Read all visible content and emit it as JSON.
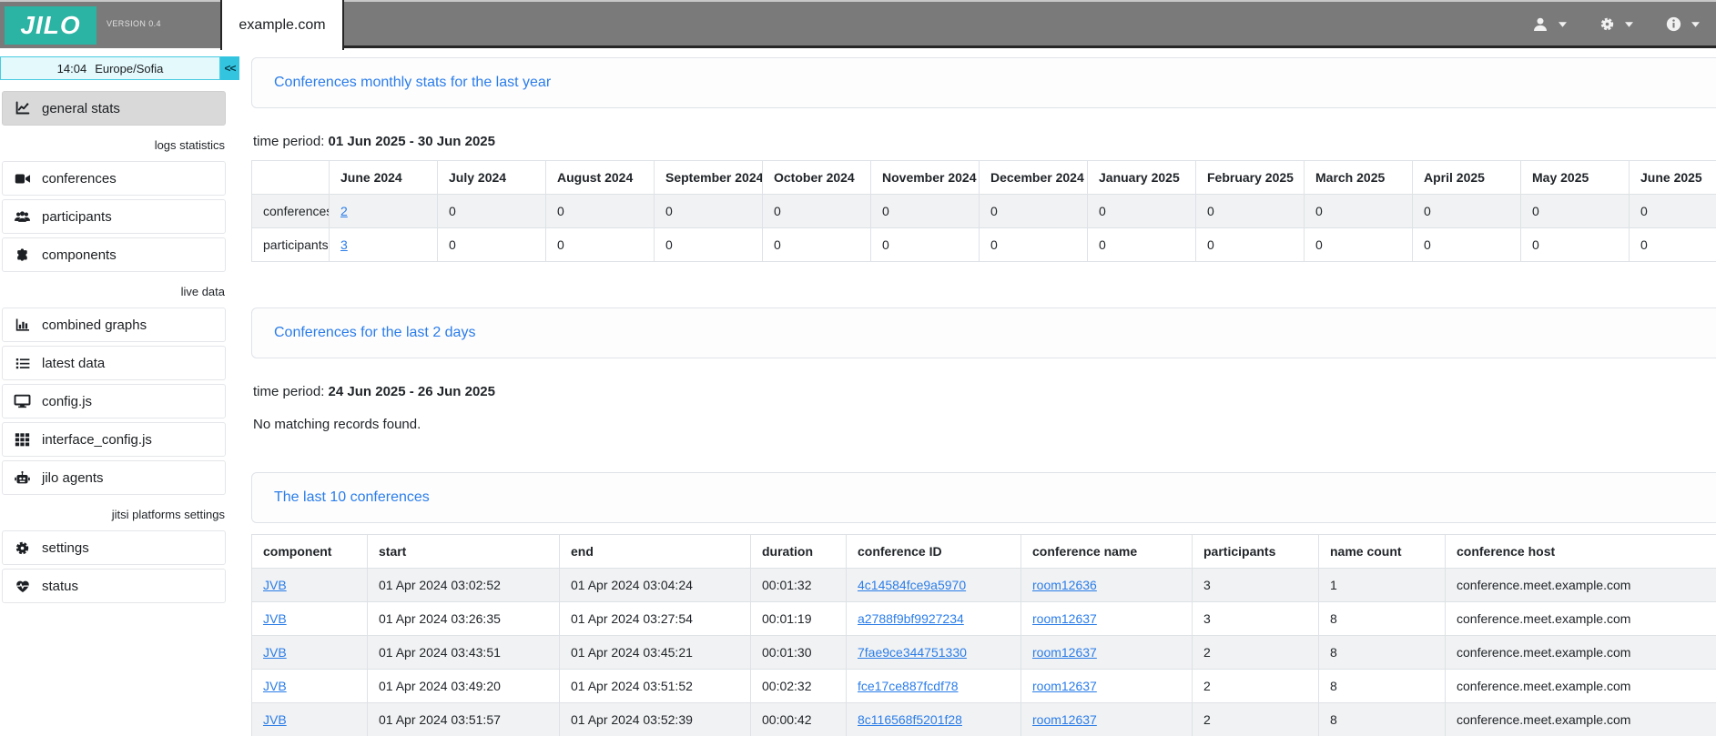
{
  "colors": {
    "brand_teal": "#2bb3a3",
    "accent_blue": "#2b7de9",
    "cyan_accent": "#33c5e0",
    "topbar_gray": "#7a7a7a"
  },
  "topbar": {
    "logo": "JILO",
    "version": "VERSION 0.4",
    "tab": "example.com",
    "menus": [
      {
        "name": "user-menu",
        "icon": "user-icon",
        "caret": "caret-down-icon"
      },
      {
        "name": "settings-menu",
        "icon": "gear-icon",
        "caret": "caret-down-icon"
      },
      {
        "name": "info-menu",
        "icon": "info-icon",
        "caret": "caret-down-icon"
      }
    ]
  },
  "sidebar": {
    "clock": {
      "time": "14:04",
      "timezone": "Europe/Sofia",
      "collapse_label": "<<"
    },
    "sections": [
      {
        "label": "",
        "items": [
          {
            "icon": "chart-line-icon",
            "label": "general stats",
            "active": true
          }
        ]
      },
      {
        "label": "logs statistics",
        "items": [
          {
            "icon": "video-icon",
            "label": "conferences",
            "active": false
          },
          {
            "icon": "users-icon",
            "label": "participants",
            "active": false
          },
          {
            "icon": "puzzle-icon",
            "label": "components",
            "active": false
          }
        ]
      },
      {
        "label": "live data",
        "items": [
          {
            "icon": "bar-chart-icon",
            "label": "combined graphs",
            "active": false
          },
          {
            "icon": "list-icon",
            "label": "latest data",
            "active": false
          },
          {
            "icon": "desktop-icon",
            "label": "config.js",
            "active": false
          },
          {
            "icon": "grid-icon",
            "label": "interface_config.js",
            "active": false
          },
          {
            "icon": "robot-icon",
            "label": "jilo agents",
            "active": false
          }
        ]
      },
      {
        "label": "jitsi platforms settings",
        "items": [
          {
            "icon": "gear-icon",
            "label": "settings",
            "active": false
          },
          {
            "icon": "heart-pulse-icon",
            "label": "status",
            "active": false
          }
        ]
      }
    ]
  },
  "main": {
    "sections": [
      {
        "title": "Conferences monthly stats for the last year",
        "time_period_label": "time period:",
        "time_period_value": "01 Jun 2025 - 30 Jun 2025",
        "table": {
          "columns": [
            "",
            "June 2024",
            "July 2024",
            "August 2024",
            "September 2024",
            "October 2024",
            "November 2024",
            "December 2024",
            "January 2025",
            "February 2025",
            "March 2025",
            "April 2025",
            "May 2025",
            "June 2025"
          ],
          "rows": [
            {
              "label": "conferences",
              "values": [
                "2",
                "0",
                "0",
                "0",
                "0",
                "0",
                "0",
                "0",
                "0",
                "0",
                "0",
                "0",
                "0"
              ]
            },
            {
              "label": "participants",
              "values": [
                "3",
                "0",
                "0",
                "0",
                "0",
                "0",
                "0",
                "0",
                "0",
                "0",
                "0",
                "0",
                "0"
              ]
            }
          ],
          "link_value_indexes": [
            0
          ]
        }
      },
      {
        "title": "Conferences for the last 2 days",
        "time_period_label": "time period:",
        "time_period_value": "24 Jun 2025 - 26 Jun 2025",
        "empty_message": "No matching records found."
      },
      {
        "title": "The last 10 conferences",
        "table": {
          "columns": [
            "component",
            "start",
            "end",
            "duration",
            "conference ID",
            "conference name",
            "participants",
            "name count",
            "conference host"
          ],
          "rows": [
            [
              "JVB",
              "01 Apr 2024 03:02:52",
              "01 Apr 2024 03:04:24",
              "00:01:32",
              "4c14584fce9a5970",
              "room12636",
              "3",
              "1",
              "conference.meet.example.com"
            ],
            [
              "JVB",
              "01 Apr 2024 03:26:35",
              "01 Apr 2024 03:27:54",
              "00:01:19",
              "a2788f9bf9927234",
              "room12637",
              "3",
              "8",
              "conference.meet.example.com"
            ],
            [
              "JVB",
              "01 Apr 2024 03:43:51",
              "01 Apr 2024 03:45:21",
              "00:01:30",
              "7fae9ce344751330",
              "room12637",
              "2",
              "8",
              "conference.meet.example.com"
            ],
            [
              "JVB",
              "01 Apr 2024 03:49:20",
              "01 Apr 2024 03:51:52",
              "00:02:32",
              "fce17ce887fcdf78",
              "room12637",
              "2",
              "8",
              "conference.meet.example.com"
            ],
            [
              "JVB",
              "01 Apr 2024 03:51:57",
              "01 Apr 2024 03:52:39",
              "00:00:42",
              "8c116568f5201f28",
              "room12637",
              "2",
              "8",
              "conference.meet.example.com"
            ]
          ],
          "link_column_indexes": [
            0,
            4,
            5
          ]
        }
      }
    ]
  }
}
